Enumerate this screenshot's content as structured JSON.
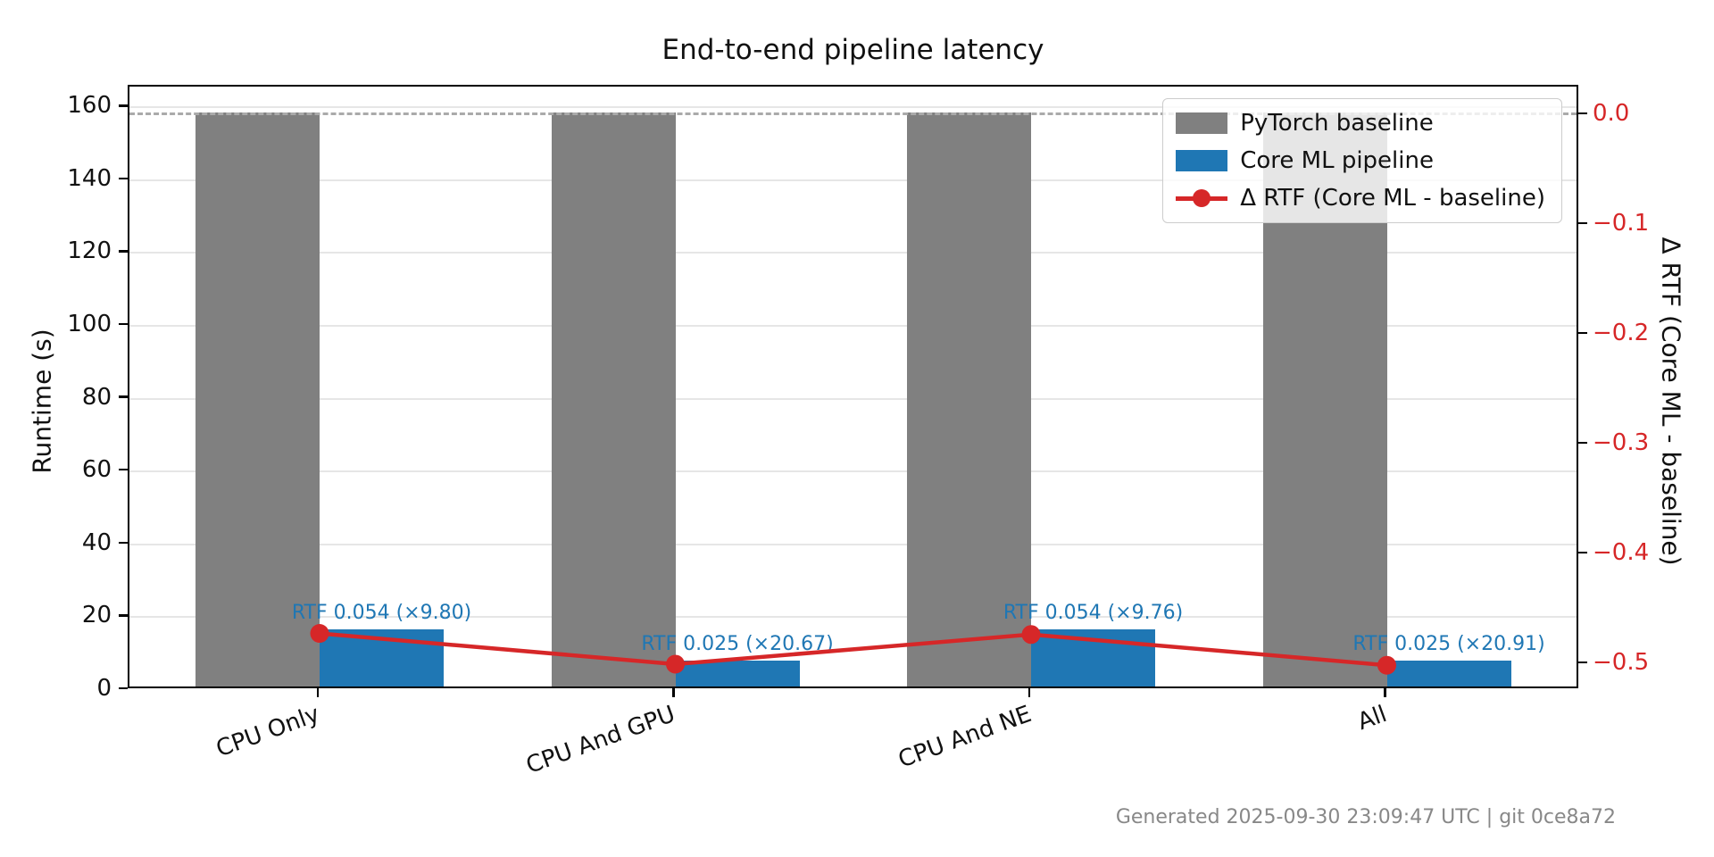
{
  "title": "End-to-end pipeline latency",
  "footer_note": "Generated 2025-09-30 23:09:47 UTC | git 0ce8a72",
  "legend": {
    "items": [
      {
        "label": "PyTorch baseline",
        "swatch": "gray-patch",
        "color": "#808080"
      },
      {
        "label": "Core ML pipeline",
        "swatch": "blue-patch",
        "color": "#1f77b4"
      },
      {
        "label": "Δ RTF (Core ML - baseline)",
        "swatch": "red-line-marker",
        "color": "#d62728"
      }
    ]
  },
  "chart_data": {
    "type": "bar",
    "title": "End-to-end pipeline latency",
    "categories": [
      "CPU Only",
      "CPU And GPU",
      "CPU And NE",
      "All"
    ],
    "series": [
      {
        "name": "PyTorch baseline",
        "type": "bar",
        "axis": "left",
        "color": "#808080",
        "values": [
          157.6,
          157.6,
          157.6,
          157.6
        ]
      },
      {
        "name": "Core ML pipeline",
        "type": "bar",
        "axis": "left",
        "color": "#1f77b4",
        "values": [
          15.7,
          7.1,
          15.7,
          7.1
        ]
      },
      {
        "name": "Δ RTF (Core ML - baseline)",
        "type": "line",
        "axis": "right",
        "color": "#d62728",
        "values": [
          -0.472,
          -0.5,
          -0.473,
          -0.501
        ]
      }
    ],
    "bar_labels": [
      "RTF 0.054 (×9.80)",
      "RTF 0.025 (×20.67)",
      "RTF 0.054 (×9.76)",
      "RTF 0.025 (×20.91)"
    ],
    "annotation_color": "#1f77b4",
    "reference_line": {
      "axis": "left",
      "value": 158.2,
      "style": "dashed",
      "color": "#aaaaaa"
    },
    "left_axis": {
      "label": "Runtime (s)",
      "tick_values": [
        0,
        20,
        40,
        60,
        80,
        100,
        120,
        140,
        160
      ],
      "tick_labels": [
        "0",
        "20",
        "40",
        "60",
        "80",
        "100",
        "120",
        "140",
        "160"
      ],
      "range": [
        0,
        165.7
      ],
      "tick_color": "#111111"
    },
    "right_axis": {
      "label": "Δ RTF (Core ML - baseline)",
      "tick_values": [
        0,
        -0.1,
        -0.2,
        -0.3,
        -0.4,
        -0.5
      ],
      "tick_labels": [
        "0.0",
        "−0.1",
        "−0.2",
        "−0.3",
        "−0.4",
        "−0.5"
      ],
      "range": [
        0.026,
        -0.5236
      ],
      "tick_color": "#d62728"
    },
    "grid": "horizontal-left-axis",
    "legend_position": "upper right"
  }
}
